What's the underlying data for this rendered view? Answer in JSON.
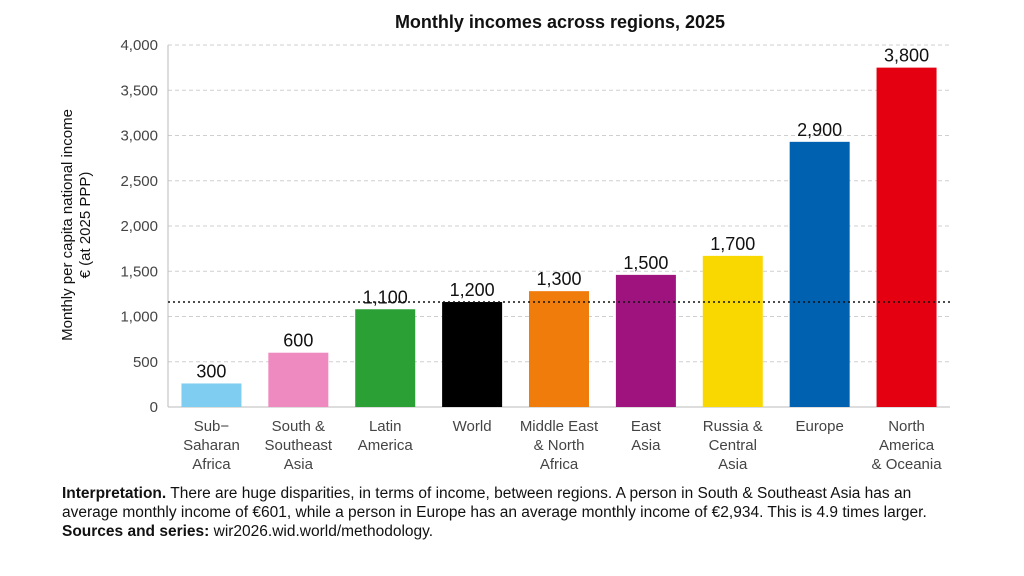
{
  "chart_data": {
    "type": "bar",
    "title": "Monthly incomes across regions, 2025",
    "ylabel_lines": [
      "Monthly per capita national income",
      "€ (at 2025 PPP)"
    ],
    "xlabel": "",
    "ylim": [
      0,
      4000
    ],
    "yticks": [
      0,
      500,
      1000,
      1500,
      2000,
      2500,
      3000,
      3500,
      4000
    ],
    "ytick_labels": [
      "0",
      "500",
      "1,000",
      "1,500",
      "2,000",
      "2,500",
      "3,000",
      "3,500",
      "4,000"
    ],
    "grid": true,
    "reference_line": {
      "value": 1160,
      "style": "dotted"
    },
    "categories": [
      [
        "Sub−",
        "Saharan",
        "Africa"
      ],
      [
        "South &",
        "Southeast",
        "Asia"
      ],
      [
        "Latin",
        "America"
      ],
      [
        "World"
      ],
      [
        "Middle East",
        "& North",
        "Africa"
      ],
      [
        "East",
        "Asia"
      ],
      [
        "Russia &",
        "Central",
        "Asia"
      ],
      [
        "Europe"
      ],
      [
        "North",
        "America",
        "& Oceania"
      ]
    ],
    "values": [
      260,
      600,
      1080,
      1160,
      1280,
      1460,
      1670,
      2930,
      3750
    ],
    "data_labels": [
      "300",
      "600",
      "1,100",
      "1,200",
      "1,300",
      "1,500",
      "1,700",
      "2,900",
      "3,800"
    ],
    "colors": [
      "#7fcdf0",
      "#ee8ac0",
      "#2aa035",
      "#000000",
      "#f07c0c",
      "#9e137e",
      "#f8d800",
      "#0061b0",
      "#e40010"
    ]
  },
  "caption": {
    "interpretation_label": "Interpretation.",
    "interpretation_text": " There are huge disparities, in terms of income, between regions. A person in South & Southeast Asia has an average monthly income of €601, while a person in Europe has an average monthly income of €2,934. This is 4.9 times larger. ",
    "sources_label": "Sources and series:",
    "sources_text": " wir2026.wid.world/methodology."
  }
}
